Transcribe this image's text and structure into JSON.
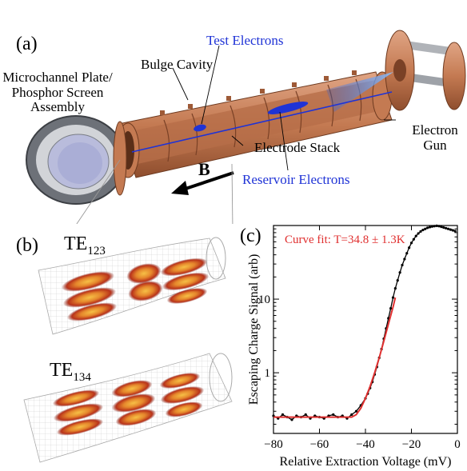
{
  "panels": {
    "a": {
      "label": "(a)"
    },
    "b": {
      "label": "(b)"
    },
    "c": {
      "label": "(c)"
    }
  },
  "apparatus": {
    "mcp_line1": "Microchannel Plate/",
    "mcp_line2": "Phosphor Screen",
    "mcp_line3": "Assembly",
    "bulge_cavity": "Bulge Cavity",
    "test_electrons": "Test Electrons",
    "electron_gun_line1": "Electron",
    "electron_gun_line2": "Gun",
    "electrode_stack": "Electrode Stack",
    "reservoir_electrons": "Reservoir Electrons",
    "b_field": "B"
  },
  "modes": {
    "mode1": {
      "prefix": "TE",
      "sub": "123"
    },
    "mode2": {
      "prefix": "TE",
      "sub": "134"
    }
  },
  "colors": {
    "copper": "#c47a52",
    "copper_dark": "#8f4e2e",
    "electron_blue": "#1f33d6",
    "fit_red": "#e03030",
    "mode_hot": "#f2a02c",
    "mode_core": "#b8321a"
  },
  "chart_data": {
    "type": "scatter",
    "xlabel": "Relative Extraction Voltage (mV)",
    "ylabel": "Escaping Charge Signal (arb)",
    "xlim": [
      -80,
      0
    ],
    "ylim": [
      0.15,
      100
    ],
    "yscale": "log",
    "xticks": [
      -80,
      -60,
      -40,
      -20,
      0
    ],
    "yticks": [
      1,
      10
    ],
    "annotation": "Curve fit: T=34.8 ± 1.3K",
    "series": [
      {
        "kind": "data",
        "color": "#000000",
        "x": [
          -80,
          -78,
          -76,
          -74,
          -72,
          -70,
          -68,
          -66,
          -64,
          -62,
          -60,
          -58,
          -56,
          -54,
          -52,
          -50,
          -48,
          -46,
          -44,
          -42,
          -40,
          -39,
          -38,
          -37,
          -36,
          -35,
          -34,
          -33,
          -32,
          -31,
          -30,
          -29,
          -28,
          -27,
          -26,
          -25,
          -24,
          -23,
          -22,
          -21,
          -20,
          -19,
          -18,
          -17,
          -16,
          -15,
          -14,
          -13,
          -12,
          -11,
          -10,
          -9,
          -8,
          -7,
          -6,
          -5,
          -4,
          -3,
          -2,
          -1
        ],
        "y": [
          0.26,
          0.24,
          0.27,
          0.25,
          0.23,
          0.26,
          0.25,
          0.27,
          0.24,
          0.26,
          0.25,
          0.24,
          0.26,
          0.27,
          0.25,
          0.26,
          0.24,
          0.27,
          0.3,
          0.36,
          0.45,
          0.52,
          0.62,
          0.75,
          0.95,
          1.2,
          1.6,
          2.1,
          2.9,
          4.0,
          5.5,
          7.5,
          10.5,
          14,
          18,
          23,
          29,
          35,
          42,
          50,
          58,
          65,
          72,
          78,
          83,
          87,
          90,
          93,
          95,
          97,
          98,
          99,
          98,
          96,
          94,
          92,
          90,
          88,
          86,
          84
        ]
      },
      {
        "kind": "fit",
        "color": "#e03030",
        "x": [
          -80,
          -60,
          -50,
          -46,
          -44,
          -42,
          -40,
          -38,
          -36,
          -34,
          -32,
          -30,
          -28,
          -27
        ],
        "y": [
          0.25,
          0.25,
          0.25,
          0.25,
          0.27,
          0.33,
          0.45,
          0.65,
          1.0,
          1.6,
          2.7,
          4.6,
          7.8,
          10.5
        ]
      }
    ]
  }
}
